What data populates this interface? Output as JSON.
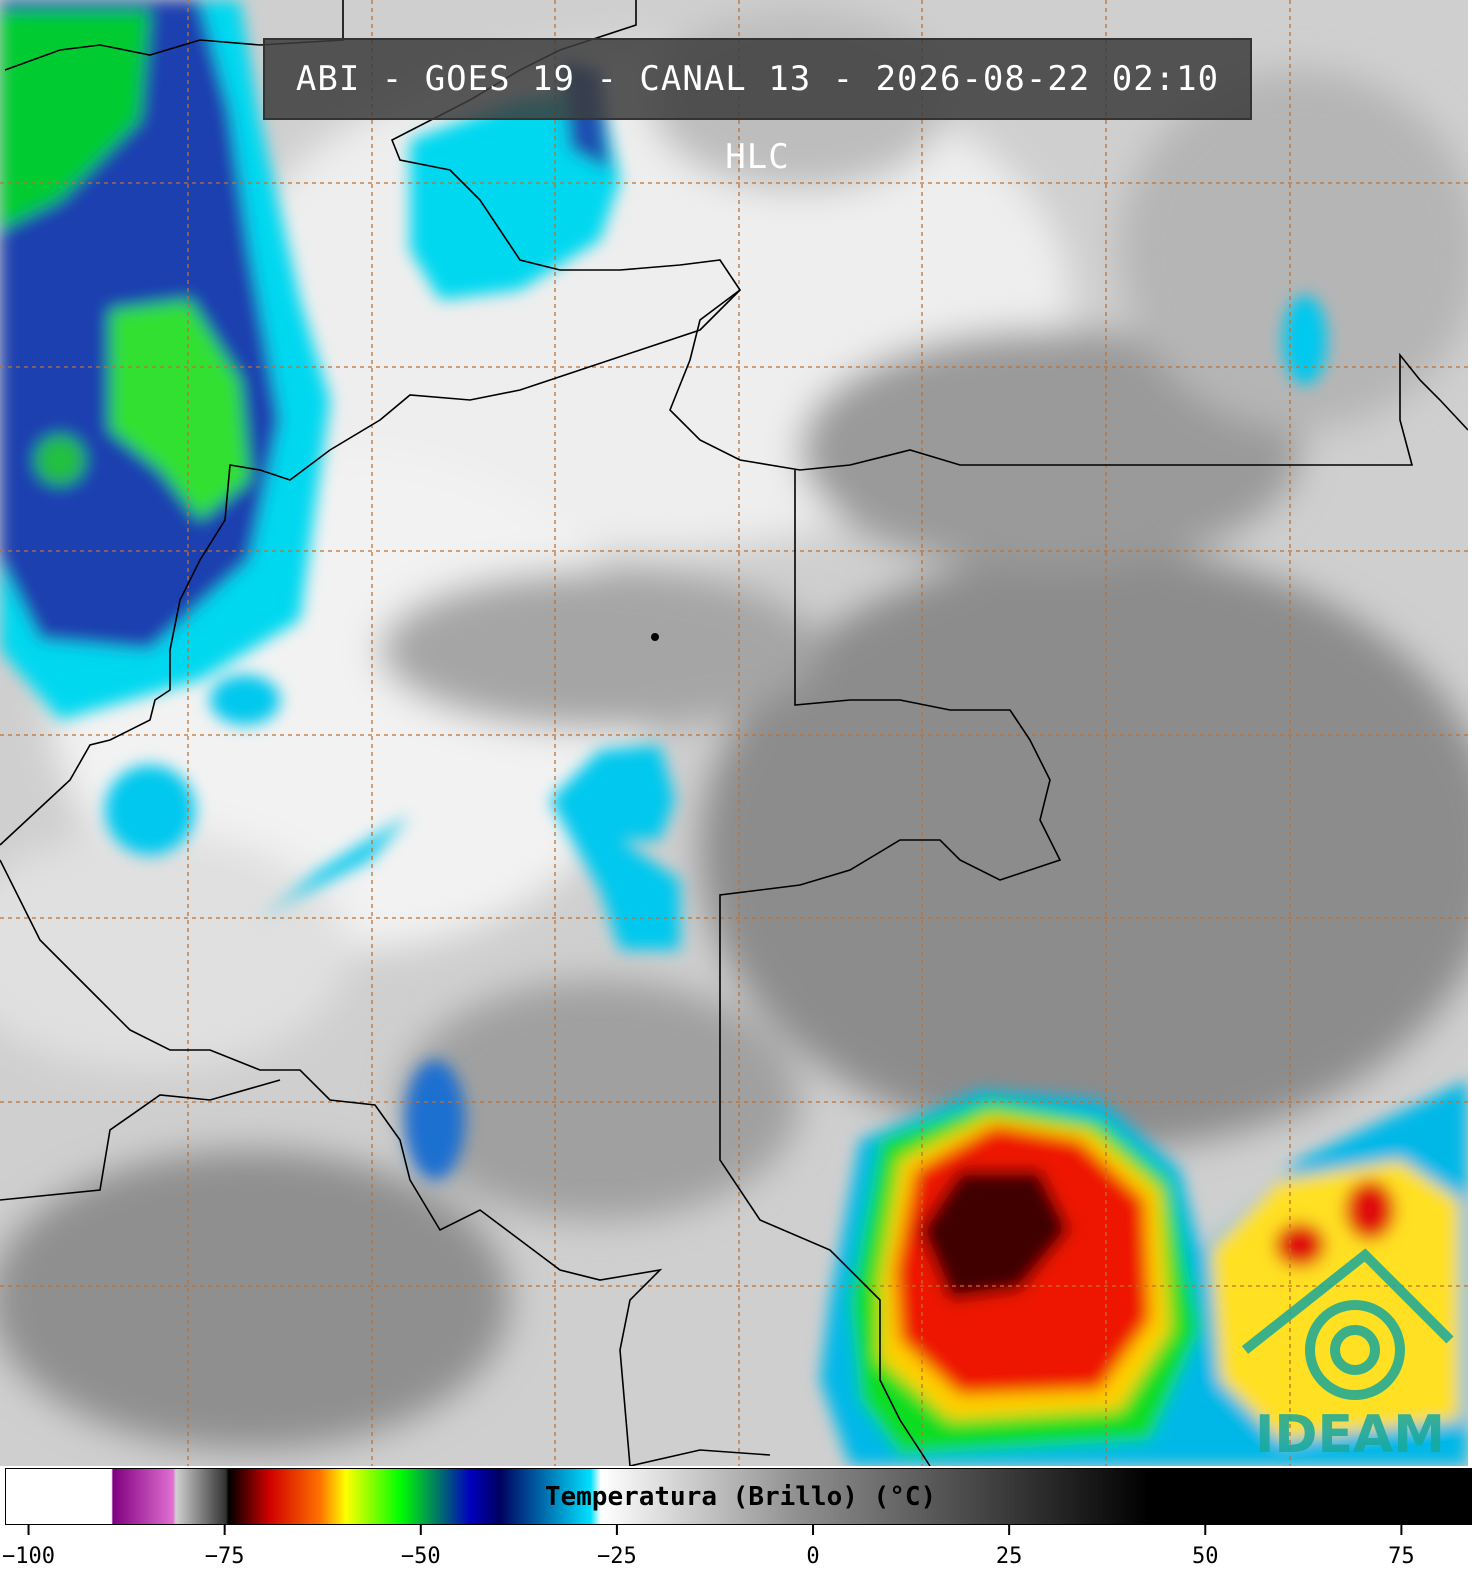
{
  "header": {
    "title": "ABI - GOES 19 - CANAL 13 - 2026-08-22 02:10 HLC"
  },
  "logo": {
    "text": "IDEAM"
  },
  "chart_data": {
    "type": "colorbar",
    "title": "Temperatura (Brillo) (°C)",
    "xlim": [
      -103,
      84
    ],
    "xticks": [
      {
        "value": -100,
        "label": "−100"
      },
      {
        "value": -75,
        "label": "−75"
      },
      {
        "value": -50,
        "label": "−50"
      },
      {
        "value": -25,
        "label": "−25"
      },
      0,
      25,
      50,
      75
    ]
  }
}
